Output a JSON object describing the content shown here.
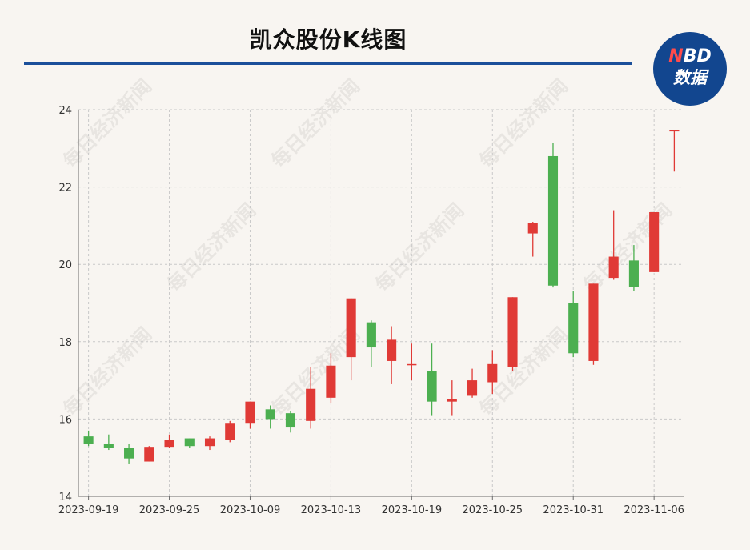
{
  "header": {
    "title": "凯众股份K线图",
    "brand_top_n": "N",
    "brand_top_rest": "BD",
    "brand_bottom": "数据"
  },
  "watermark": {
    "text": "每日经济新闻"
  },
  "colors": {
    "up": "#e03a36",
    "down": "#4caf50",
    "rule": "#1b4f9a",
    "badge": "#12468f"
  },
  "chart_data": {
    "type": "candlestick",
    "title": "凯众股份K线图",
    "xlabel": "",
    "ylabel": "",
    "ylim": [
      14,
      24
    ],
    "y_ticks": [
      14,
      16,
      18,
      20,
      22,
      24
    ],
    "grid": true,
    "x_tick_labels": [
      "2023-09-19",
      "2023-09-25",
      "2023-10-09",
      "2023-10-13",
      "2023-10-19",
      "2023-10-25",
      "2023-10-31",
      "2023-11-06"
    ],
    "x_tick_indices": [
      0,
      4,
      8,
      12,
      16,
      20,
      24,
      28
    ],
    "candles": [
      {
        "date": "2023-09-19",
        "open": 15.55,
        "close": 15.35,
        "high": 15.7,
        "low": 15.3
      },
      {
        "date": "2023-09-20",
        "open": 15.35,
        "close": 15.25,
        "high": 15.6,
        "low": 15.2
      },
      {
        "date": "2023-09-21",
        "open": 15.25,
        "close": 14.98,
        "high": 15.35,
        "low": 14.85
      },
      {
        "date": "2023-09-22",
        "open": 14.9,
        "close": 15.28,
        "high": 15.3,
        "low": 14.9
      },
      {
        "date": "2023-09-25",
        "open": 15.28,
        "close": 15.45,
        "high": 15.6,
        "low": 15.25
      },
      {
        "date": "2023-09-26",
        "open": 15.5,
        "close": 15.3,
        "high": 15.5,
        "low": 15.25
      },
      {
        "date": "2023-09-27",
        "open": 15.3,
        "close": 15.5,
        "high": 15.55,
        "low": 15.2
      },
      {
        "date": "2023-09-28",
        "open": 15.45,
        "close": 15.9,
        "high": 15.95,
        "low": 15.4
      },
      {
        "date": "2023-10-09",
        "open": 15.9,
        "close": 16.45,
        "high": 16.45,
        "low": 15.75
      },
      {
        "date": "2023-10-10",
        "open": 16.25,
        "close": 16.0,
        "high": 16.35,
        "low": 15.75
      },
      {
        "date": "2023-10-11",
        "open": 16.15,
        "close": 15.8,
        "high": 16.2,
        "low": 15.65
      },
      {
        "date": "2023-10-12",
        "open": 15.95,
        "close": 16.78,
        "high": 17.35,
        "low": 15.75
      },
      {
        "date": "2023-10-13",
        "open": 16.55,
        "close": 17.38,
        "high": 17.7,
        "low": 16.4
      },
      {
        "date": "2023-10-16",
        "open": 17.6,
        "close": 19.12,
        "high": 19.12,
        "low": 17.0
      },
      {
        "date": "2023-10-17",
        "open": 18.5,
        "close": 17.85,
        "high": 18.55,
        "low": 17.35
      },
      {
        "date": "2023-10-18",
        "open": 17.5,
        "close": 18.05,
        "high": 18.4,
        "low": 16.9
      },
      {
        "date": "2023-10-19",
        "open": 17.4,
        "close": 17.42,
        "high": 17.95,
        "low": 17.0
      },
      {
        "date": "2023-10-20",
        "open": 17.25,
        "close": 16.45,
        "high": 17.95,
        "low": 16.1
      },
      {
        "date": "2023-10-23",
        "open": 16.45,
        "close": 16.52,
        "high": 17.0,
        "low": 16.1
      },
      {
        "date": "2023-10-24",
        "open": 16.6,
        "close": 17.0,
        "high": 17.3,
        "low": 16.55
      },
      {
        "date": "2023-10-25",
        "open": 16.95,
        "close": 17.42,
        "high": 17.78,
        "low": 16.65
      },
      {
        "date": "2023-10-26",
        "open": 17.35,
        "close": 19.15,
        "high": 19.15,
        "low": 17.25
      },
      {
        "date": "2023-10-27",
        "open": 20.8,
        "close": 21.08,
        "high": 21.1,
        "low": 20.2
      },
      {
        "date": "2023-10-30",
        "open": 22.8,
        "close": 19.45,
        "high": 23.15,
        "low": 19.4
      },
      {
        "date": "2023-10-31",
        "open": 19.0,
        "close": 17.7,
        "high": 19.3,
        "low": 17.6
      },
      {
        "date": "2023-11-01",
        "open": 17.5,
        "close": 19.5,
        "high": 19.5,
        "low": 17.4
      },
      {
        "date": "2023-11-02",
        "open": 19.65,
        "close": 20.2,
        "high": 21.4,
        "low": 19.6
      },
      {
        "date": "2023-11-03",
        "open": 20.1,
        "close": 19.42,
        "high": 20.5,
        "low": 19.3
      },
      {
        "date": "2023-11-06",
        "open": 19.8,
        "close": 21.35,
        "high": 21.35,
        "low": 19.8
      },
      {
        "date": "2023-11-07",
        "open": 23.47,
        "close": 23.47,
        "high": 23.47,
        "low": 22.4
      }
    ]
  }
}
